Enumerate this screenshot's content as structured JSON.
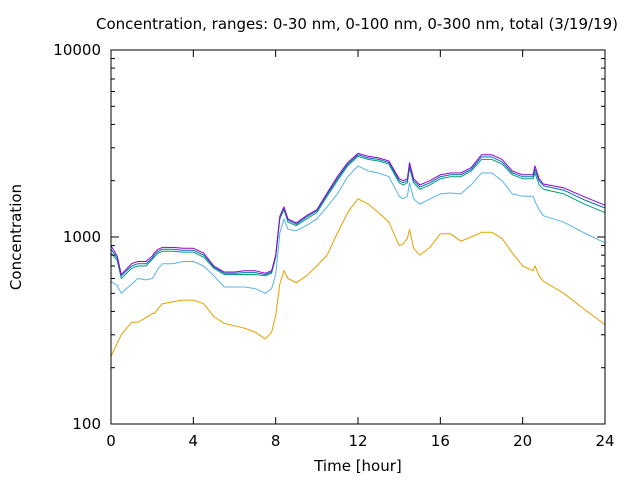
{
  "chart_data": {
    "type": "line",
    "title": "Concentration, ranges: 0-30 nm, 0-100 nm, 0-300 nm, total (3/19/19)",
    "xlabel": "Time [hour]",
    "ylabel": "Concentration",
    "xlim": [
      0,
      24
    ],
    "ylim": [
      100,
      10000
    ],
    "yscale": "log",
    "x_ticks": [
      0,
      4,
      8,
      12,
      16,
      20,
      24
    ],
    "x_tick_labels": [
      "0",
      "4",
      "8",
      "12",
      "16",
      "20",
      "24"
    ],
    "y_ticks": [
      100,
      1000,
      10000
    ],
    "y_tick_labels": [
      "100",
      "1000",
      "10000"
    ],
    "grid": false,
    "legend": "none",
    "x": [
      0,
      0.3,
      0.5,
      1,
      1.3,
      1.7,
      2,
      2.1,
      2.3,
      2.5,
      3,
      3.5,
      4,
      4.5,
      5,
      5.5,
      6,
      6.5,
      7,
      7.5,
      7.8,
      8,
      8.2,
      8.4,
      8.6,
      9,
      9.5,
      10,
      10.5,
      11,
      11.5,
      12,
      12.5,
      13,
      13.5,
      14,
      14.2,
      14.4,
      14.5,
      14.7,
      15,
      15.5,
      16,
      16.5,
      17,
      17.5,
      18,
      18.5,
      19,
      19.5,
      20,
      20.5,
      20.6,
      20.8,
      21,
      22,
      23,
      24
    ],
    "series": [
      {
        "color": "#e69f00",
        "values": [
          230,
          270,
          300,
          350,
          350,
          370,
          390,
          390,
          415,
          440,
          450,
          460,
          460,
          440,
          375,
          345,
          335,
          325,
          310,
          285,
          310,
          380,
          560,
          660,
          600,
          570,
          620,
          700,
          800,
          1050,
          1350,
          1600,
          1500,
          1350,
          1200,
          900,
          920,
          980,
          1100,
          870,
          800,
          880,
          1040,
          1040,
          950,
          1000,
          1060,
          1060,
          980,
          820,
          700,
          660,
          700,
          620,
          580,
          500,
          410,
          340
        ]
      },
      {
        "color": "#56b4e9",
        "values": [
          580,
          550,
          500,
          560,
          600,
          590,
          600,
          620,
          680,
          720,
          720,
          740,
          740,
          700,
          620,
          540,
          540,
          540,
          530,
          500,
          530,
          630,
          1050,
          1250,
          1100,
          1080,
          1150,
          1250,
          1450,
          1700,
          2100,
          2400,
          2250,
          2200,
          2100,
          1650,
          1600,
          1650,
          1950,
          1600,
          1500,
          1600,
          1700,
          1720,
          1700,
          1900,
          2200,
          2200,
          2000,
          1700,
          1650,
          1650,
          1550,
          1400,
          1300,
          1200,
          1050,
          930
        ]
      },
      {
        "color": "#009e73",
        "values": [
          820,
          750,
          600,
          680,
          700,
          700,
          760,
          780,
          820,
          840,
          840,
          830,
          830,
          780,
          680,
          630,
          630,
          630,
          630,
          620,
          640,
          780,
          1250,
          1400,
          1200,
          1150,
          1250,
          1350,
          1650,
          2000,
          2400,
          2700,
          2600,
          2550,
          2450,
          1950,
          1900,
          1950,
          2350,
          1950,
          1800,
          1900,
          2050,
          2100,
          2100,
          2250,
          2600,
          2600,
          2450,
          2150,
          2050,
          2050,
          2200,
          1900,
          1800,
          1700,
          1500,
          1350
        ]
      },
      {
        "color": "#0072b2",
        "values": [
          860,
          770,
          620,
          700,
          720,
          720,
          770,
          800,
          840,
          860,
          860,
          850,
          850,
          800,
          690,
          640,
          640,
          645,
          645,
          630,
          650,
          790,
          1270,
          1430,
          1230,
          1170,
          1280,
          1380,
          1690,
          2050,
          2450,
          2750,
          2650,
          2600,
          2500,
          2000,
          1950,
          2000,
          2420,
          2000,
          1850,
          1950,
          2100,
          2150,
          2150,
          2300,
          2680,
          2680,
          2520,
          2200,
          2100,
          2100,
          2300,
          2000,
          1880,
          1780,
          1580,
          1430
        ]
      },
      {
        "color": "#9400d3",
        "values": [
          900,
          790,
          630,
          720,
          740,
          740,
          790,
          820,
          860,
          880,
          880,
          870,
          870,
          820,
          700,
          650,
          650,
          660,
          660,
          640,
          660,
          800,
          1290,
          1450,
          1250,
          1190,
          1300,
          1400,
          1720,
          2100,
          2500,
          2800,
          2700,
          2650,
          2550,
          2050,
          2000,
          2050,
          2500,
          2050,
          1900,
          2000,
          2150,
          2200,
          2200,
          2350,
          2750,
          2750,
          2600,
          2250,
          2150,
          2150,
          2400,
          2050,
          1920,
          1830,
          1640,
          1480
        ]
      }
    ]
  }
}
